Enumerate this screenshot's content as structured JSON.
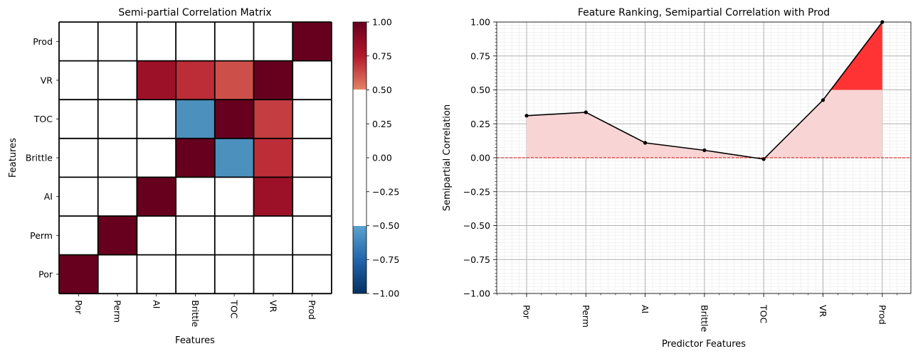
{
  "chart_data": [
    {
      "type": "heatmap",
      "title": "Semi-partial Correlation Matrix",
      "xlabel": "Features",
      "ylabel": "Features",
      "x_categories": [
        "Por",
        "Perm",
        "AI",
        "Brittle",
        "TOC",
        "VR",
        "Prod"
      ],
      "y_categories_top_to_bottom": [
        "Prod",
        "VR",
        "TOC",
        "Brittle",
        "AI",
        "Perm",
        "Por"
      ],
      "values_top_to_bottom": [
        [
          0,
          0,
          0,
          0,
          0,
          0,
          1.0
        ],
        [
          0,
          0,
          0.82,
          0.7,
          0.62,
          1.0,
          0
        ],
        [
          0,
          0,
          0,
          -0.58,
          1.0,
          0.66,
          0
        ],
        [
          0,
          0,
          0,
          1.0,
          -0.58,
          0.7,
          0
        ],
        [
          0,
          0,
          1.0,
          0,
          0,
          0.82,
          0
        ],
        [
          0,
          1.0,
          0,
          0,
          0,
          0,
          0
        ],
        [
          1.0,
          0,
          0,
          0,
          0,
          0,
          0
        ]
      ],
      "colorbar": {
        "range": [
          -1.0,
          1.0
        ],
        "masked_range": [
          -0.5,
          0.5
        ],
        "masked_color": "#ffffff",
        "tick_labels": [
          "1.00",
          "0.75",
          "0.50",
          "0.25",
          "0.00",
          "−0.25",
          "−0.50",
          "−0.75",
          "−1.00"
        ],
        "colormap": "RdBu_r"
      }
    },
    {
      "type": "line",
      "title": "Feature Ranking, Semipartial Correlation with Prod",
      "xlabel": "Predictor Features",
      "ylabel": "Semipartial Correlation",
      "categories": [
        "Por",
        "Perm",
        "AI",
        "Brittle",
        "TOC",
        "VR",
        "Prod"
      ],
      "values": [
        0.31,
        0.335,
        0.11,
        0.055,
        -0.01,
        0.425,
        1.0
      ],
      "ylim": [
        -1.0,
        1.0
      ],
      "y_tick_labels": [
        "1.00",
        "0.75",
        "0.50",
        "0.25",
        "0.00",
        "−0.25",
        "−0.50",
        "−0.75",
        "−1.00"
      ],
      "reference_line": 0.0,
      "highlight_threshold": 0.5,
      "colors": {
        "line": "#000000",
        "fill": "#f8d4d4",
        "highlight": "#ff2a2a",
        "reference": "#dd0000"
      },
      "grid": true
    }
  ]
}
